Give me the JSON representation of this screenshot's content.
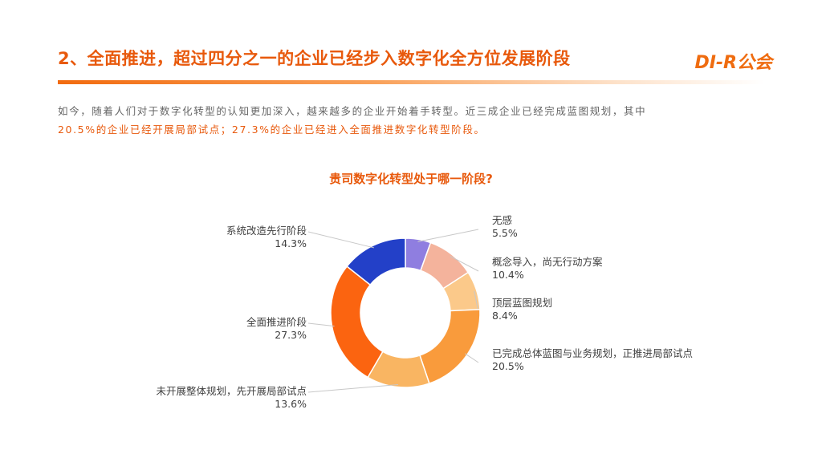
{
  "header": {
    "title": "2、全面推进，超过四分之一的企业已经步入数字化全方位发展阶段",
    "logo": "DI-R公会"
  },
  "intro": {
    "line1": "如今，随着人们对于数字化转型的认知更加深入，越来越多的企业开始着手转型。近三成企业已经完成蓝图规划，其中",
    "line2": "20.5%的企业已经开展局部试点；27.3%的企业已经进入全面推进数字化转型阶段。"
  },
  "chart_data": {
    "type": "pie",
    "donut": true,
    "title": "贵司数字化转型处于哪一阶段?",
    "unit": "%",
    "slices": [
      {
        "label": "无感",
        "value": 5.5,
        "display": "5.5%",
        "color": "#8f7ee0"
      },
      {
        "label": "概念导入，尚无行动方案",
        "value": 10.4,
        "display": "10.4%",
        "color": "#f4b39c"
      },
      {
        "label": "顶层蓝图规划",
        "value": 8.4,
        "display": "8.4%",
        "color": "#fbc98a"
      },
      {
        "label": "已完成总体蓝图与业务规划，正推进局部试点",
        "value": 20.5,
        "display": "20.5%",
        "color": "#f99b3c"
      },
      {
        "label": "未开展整体规划，先开展局部试点",
        "value": 13.6,
        "display": "13.6%",
        "color": "#f9b562"
      },
      {
        "label": "全面推进阶段",
        "value": 27.3,
        "display": "27.3%",
        "color": "#fb6410"
      },
      {
        "label": "系统改造先行阶段",
        "value": 14.3,
        "display": "14.3%",
        "color": "#2340c8"
      }
    ]
  }
}
